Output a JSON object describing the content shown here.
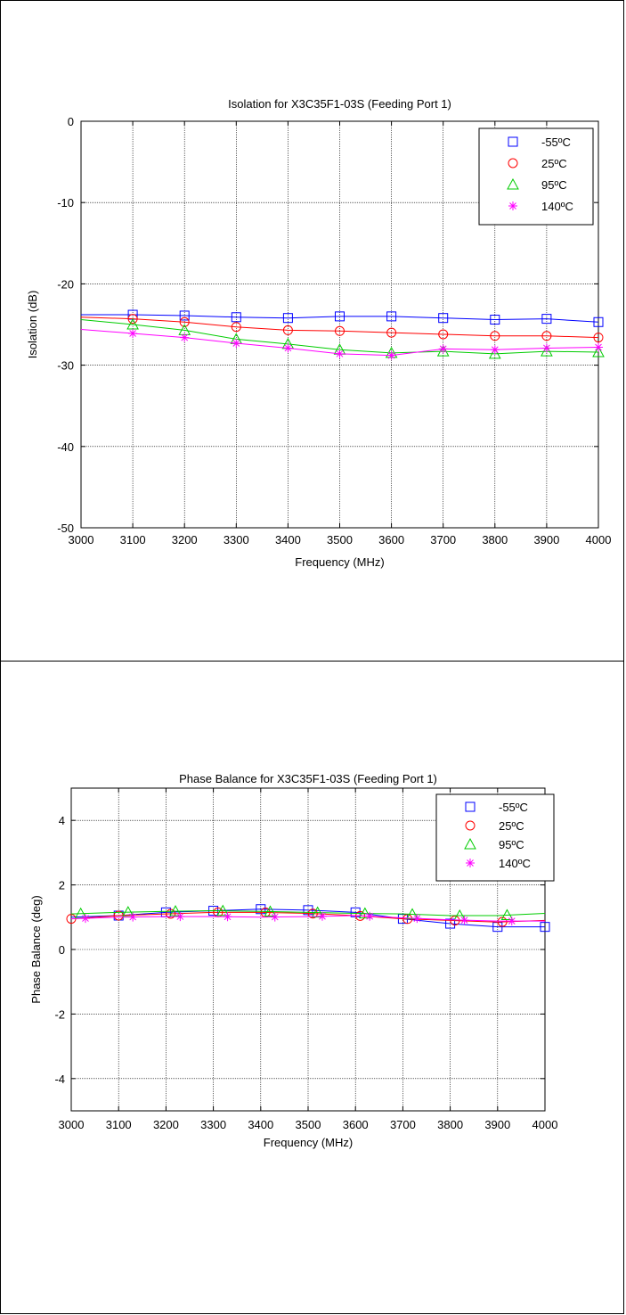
{
  "colors": {
    "series_1": "#0000ff",
    "series_2": "#ff0000",
    "series_3": "#00cc00",
    "series_4": "#ff00ff"
  },
  "chart_data": [
    {
      "type": "line",
      "title": "Isolation for X3C35F1-03S (Feeding Port 1)",
      "xlabel": "Frequency (MHz)",
      "ylabel": "Isolation (dB)",
      "xlim": [
        3000,
        4000
      ],
      "ylim": [
        -50,
        0
      ],
      "xticks": [
        3000,
        3100,
        3200,
        3300,
        3400,
        3500,
        3600,
        3700,
        3800,
        3900,
        4000
      ],
      "yticks": [
        0,
        -10,
        -20,
        -30,
        -40,
        -50
      ],
      "grid": true,
      "legend_position": "top-right",
      "series": [
        {
          "name": "-55ºC",
          "marker": "square",
          "color": "#0000ff",
          "x": [
            3000,
            3100,
            3200,
            3300,
            3400,
            3500,
            3600,
            3700,
            3800,
            3900,
            4000
          ],
          "y": [
            -23.8,
            -23.8,
            -23.9,
            -24.1,
            -24.2,
            -24.0,
            -24.0,
            -24.2,
            -24.4,
            -24.3,
            -24.7
          ],
          "marker_x": [
            3100,
            3200,
            3300,
            3400,
            3500,
            3600,
            3700,
            3800,
            3900,
            4000
          ]
        },
        {
          "name": "25ºC",
          "marker": "circle",
          "color": "#ff0000",
          "x": [
            3000,
            3100,
            3200,
            3300,
            3400,
            3500,
            3600,
            3700,
            3800,
            3900,
            4000
          ],
          "y": [
            -24.1,
            -24.3,
            -24.7,
            -25.3,
            -25.7,
            -25.8,
            -26.0,
            -26.2,
            -26.4,
            -26.4,
            -26.6
          ],
          "marker_x": [
            3100,
            3200,
            3300,
            3400,
            3500,
            3600,
            3700,
            3800,
            3900,
            4000
          ]
        },
        {
          "name": "95ºC",
          "marker": "triangle",
          "color": "#00cc00",
          "x": [
            3000,
            3100,
            3200,
            3300,
            3400,
            3500,
            3600,
            3700,
            3800,
            3900,
            4000
          ],
          "y": [
            -24.4,
            -25.0,
            -25.7,
            -26.8,
            -27.4,
            -28.1,
            -28.5,
            -28.3,
            -28.6,
            -28.3,
            -28.4
          ],
          "marker_x": [
            3100,
            3200,
            3300,
            3400,
            3500,
            3600,
            3700,
            3800,
            3900,
            4000
          ]
        },
        {
          "name": "140ºC",
          "marker": "star",
          "color": "#ff00ff",
          "x": [
            3000,
            3100,
            3200,
            3300,
            3400,
            3500,
            3600,
            3700,
            3800,
            3900,
            4000
          ],
          "y": [
            -25.6,
            -26.1,
            -26.6,
            -27.3,
            -27.9,
            -28.6,
            -28.8,
            -28.0,
            -28.1,
            -27.9,
            -27.8
          ],
          "marker_x": [
            3100,
            3200,
            3300,
            3400,
            3500,
            3600,
            3700,
            3800,
            3900,
            4000
          ]
        }
      ]
    },
    {
      "type": "line",
      "title": "Phase Balance for X3C35F1-03S (Feeding Port 1)",
      "xlabel": "Frequency (MHz)",
      "ylabel": "Phase Balance (deg)",
      "xlim": [
        3000,
        4000
      ],
      "ylim": [
        -5,
        5
      ],
      "xticks": [
        3000,
        3100,
        3200,
        3300,
        3400,
        3500,
        3600,
        3700,
        3800,
        3900,
        4000
      ],
      "yticks": [
        4,
        2,
        0,
        -2,
        -4
      ],
      "grid": true,
      "legend_position": "top-right",
      "series": [
        {
          "name": "-55ºC",
          "marker": "square",
          "color": "#0000ff",
          "x": [
            3000,
            3100,
            3200,
            3300,
            3400,
            3500,
            3600,
            3700,
            3800,
            3900,
            4000
          ],
          "y": [
            1.0,
            1.05,
            1.15,
            1.2,
            1.25,
            1.22,
            1.15,
            0.95,
            0.8,
            0.7,
            0.7
          ],
          "marker_x": [
            3100,
            3200,
            3300,
            3400,
            3500,
            3600,
            3700,
            3800,
            3900,
            4000
          ]
        },
        {
          "name": "25ºC",
          "marker": "circle",
          "color": "#ff0000",
          "x": [
            3000,
            3100,
            3200,
            3300,
            3400,
            3500,
            3600,
            3700,
            3800,
            3900,
            4000
          ],
          "y": [
            0.95,
            1.05,
            1.1,
            1.15,
            1.15,
            1.12,
            1.05,
            0.95,
            0.9,
            0.85,
            0.9
          ],
          "marker_x": [
            3000,
            3100,
            3210,
            3310,
            3410,
            3510,
            3610,
            3710,
            3810,
            3910
          ]
        },
        {
          "name": "95ºC",
          "marker": "triangle",
          "color": "#00cc00",
          "x": [
            3000,
            3100,
            3200,
            3300,
            3400,
            3500,
            3600,
            3700,
            3800,
            3900,
            4000
          ],
          "y": [
            1.1,
            1.15,
            1.18,
            1.2,
            1.18,
            1.15,
            1.12,
            1.1,
            1.05,
            1.05,
            1.12
          ],
          "marker_x": [
            3020,
            3120,
            3220,
            3320,
            3420,
            3520,
            3620,
            3720,
            3820,
            3920
          ]
        },
        {
          "name": "140ºC",
          "marker": "star",
          "color": "#ff00ff",
          "x": [
            3000,
            3100,
            3200,
            3300,
            3400,
            3500,
            3600,
            3700,
            3800,
            3900,
            4000
          ],
          "y": [
            0.95,
            1.0,
            1.02,
            1.02,
            1.0,
            1.02,
            1.05,
            0.98,
            0.92,
            0.88,
            0.88
          ],
          "marker_x": [
            3030,
            3130,
            3230,
            3330,
            3430,
            3530,
            3630,
            3730,
            3830,
            3930
          ]
        }
      ]
    }
  ]
}
